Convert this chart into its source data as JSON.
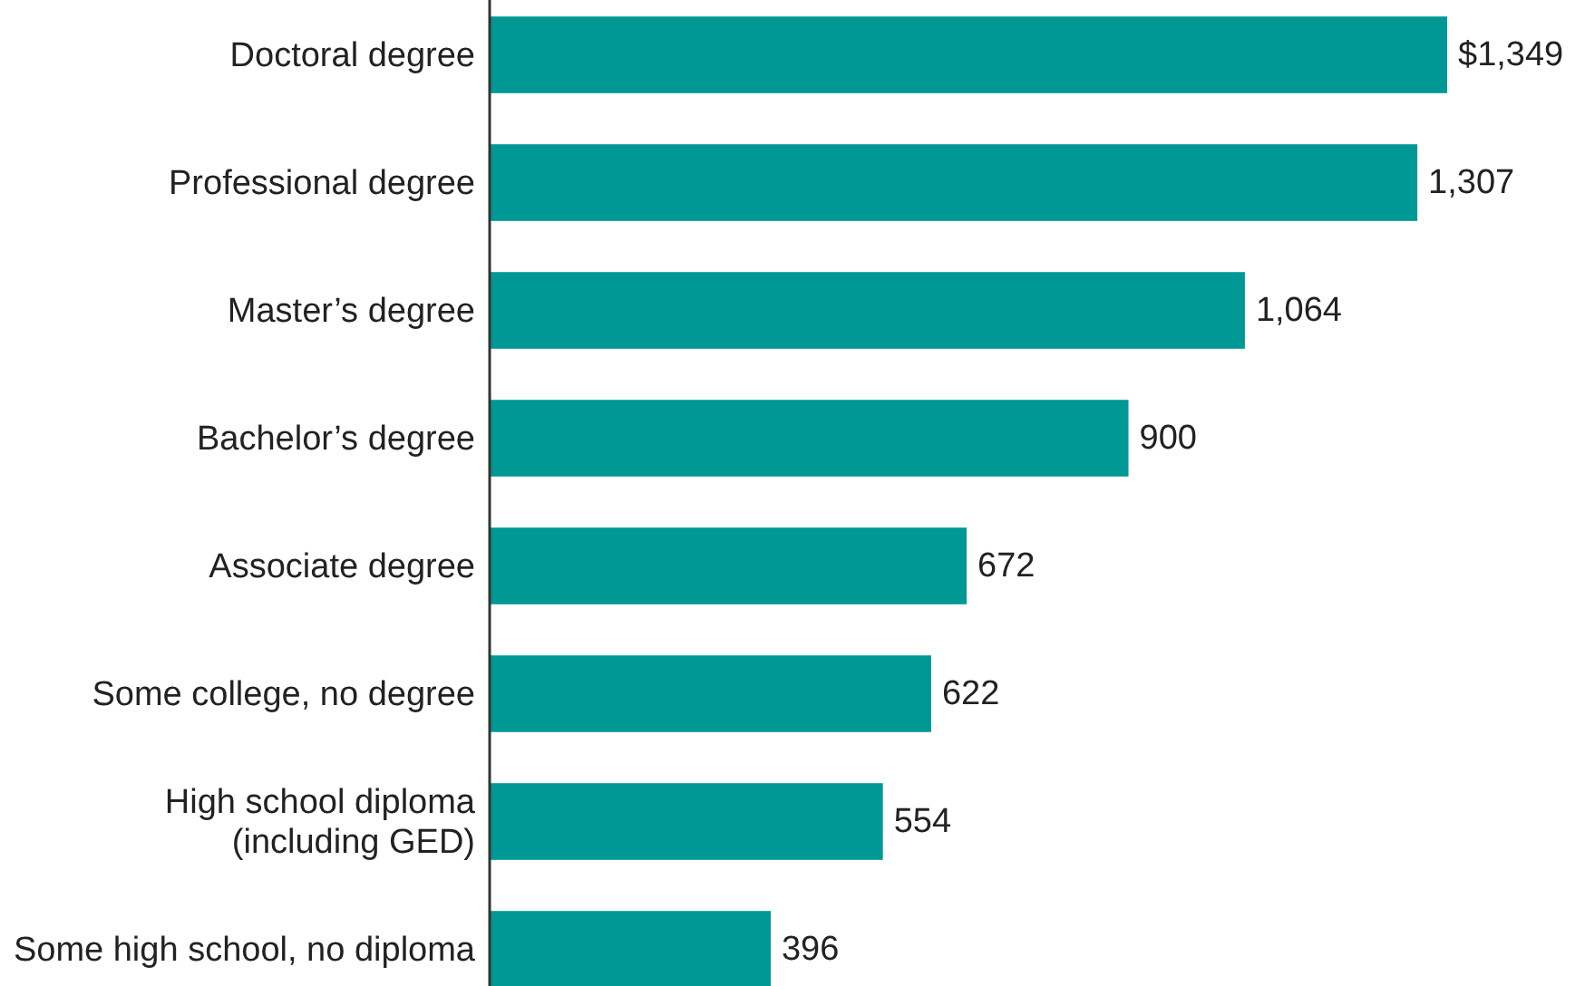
{
  "chart_data": {
    "type": "bar",
    "orientation": "horizontal",
    "categories": [
      "Doctoral degree",
      "Professional degree",
      "Master’s degree",
      "Bachelor’s degree",
      "Associate degree",
      "Some college, no degree",
      "High school diploma (including GED)",
      "Some high school, no diploma"
    ],
    "values": [
      1349,
      1307,
      1064,
      900,
      672,
      622,
      554,
      396
    ],
    "value_labels": [
      "$1,349",
      "1,307",
      "1,064",
      "900",
      "672",
      "622",
      "554",
      "396"
    ],
    "color": "#009894"
  }
}
